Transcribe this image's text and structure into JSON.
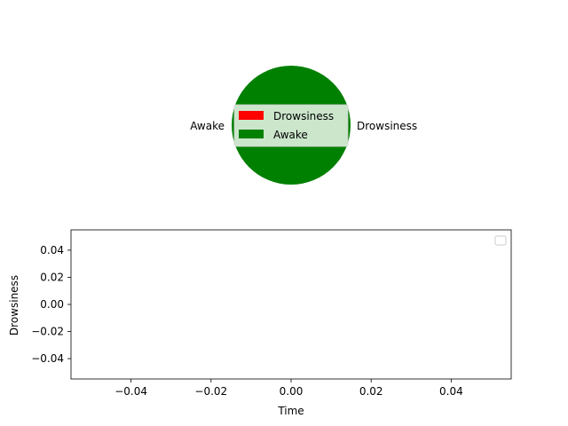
{
  "chart_data": [
    {
      "type": "pie",
      "categories": [
        "Drowsiness",
        "Awake"
      ],
      "values": [
        0,
        100
      ],
      "colors": [
        "#ff0000",
        "#008000"
      ],
      "slice_labels": [
        "Drowsiness",
        "Awake"
      ],
      "legend": {
        "placement": "center",
        "entries": [
          {
            "label": "Drowsiness",
            "color": "#ff0000"
          },
          {
            "label": "Awake",
            "color": "#008000"
          }
        ]
      }
    },
    {
      "type": "line",
      "xlabel": "Time",
      "ylabel": "Drowsiness",
      "xlim": [
        -0.055,
        0.055
      ],
      "ylim": [
        -0.055,
        0.055
      ],
      "xticks": [
        -0.04,
        -0.02,
        0.0,
        0.02,
        0.04
      ],
      "xtick_labels": [
        "−0.04",
        "−0.02",
        "0.00",
        "0.02",
        "0.04"
      ],
      "yticks": [
        0.04,
        0.02,
        0.0,
        -0.02,
        -0.04
      ],
      "ytick_labels": [
        "0.04",
        "0.02",
        "0.00",
        "−0.02",
        "−0.04"
      ],
      "series": [],
      "grid": false,
      "legend": {
        "placement": "top-right",
        "entries": []
      }
    }
  ]
}
